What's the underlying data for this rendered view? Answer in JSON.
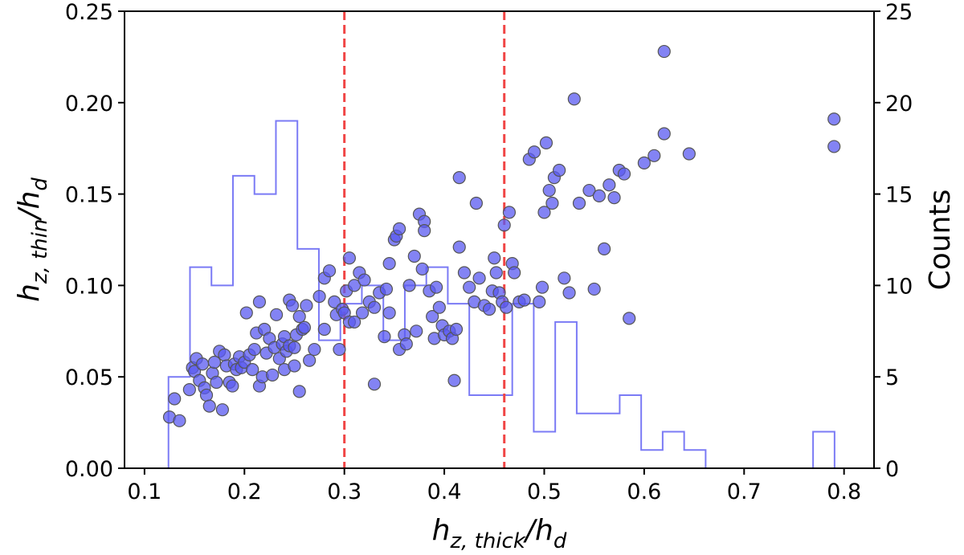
{
  "chart_data": {
    "type": "scatter",
    "title": "",
    "xlabel": {
      "base": "h",
      "sub": "z, thick",
      "suffix": "/h",
      "suffix_sub": "d"
    },
    "ylabel": {
      "base": "h",
      "sub": "z, thin",
      "suffix": "/h",
      "suffix_sub": "d"
    },
    "y2label": "Counts",
    "xlim": [
      0.08,
      0.83
    ],
    "ylim": [
      0,
      0.25
    ],
    "y2lim": [
      0,
      25
    ],
    "xticks": [
      "0.1",
      "0.2",
      "0.3",
      "0.4",
      "0.5",
      "0.6",
      "0.7",
      "0.8"
    ],
    "xtick_values": [
      0.1,
      0.2,
      0.3,
      0.4,
      0.5,
      0.6,
      0.7,
      0.8
    ],
    "yticks": [
      "0.00",
      "0.05",
      "0.10",
      "0.15",
      "0.20",
      "0.25"
    ],
    "ytick_values": [
      0,
      0.05,
      0.1,
      0.15,
      0.2,
      0.25
    ],
    "y2ticks": [
      "0",
      "5",
      "10",
      "15",
      "20",
      "25"
    ],
    "y2tick_values": [
      0,
      5,
      10,
      15,
      20,
      25
    ],
    "vlines": [
      0.3,
      0.46
    ],
    "colors": {
      "marker": "#5a5af0",
      "marker_edge": "#555555",
      "hist": "#7b7bf5",
      "vline": "#f04545"
    },
    "histogram": {
      "edges": [
        0.124,
        0.1455,
        0.167,
        0.1885,
        0.21,
        0.2315,
        0.253,
        0.2745,
        0.296,
        0.3175,
        0.339,
        0.3605,
        0.382,
        0.4035,
        0.425,
        0.4465,
        0.468,
        0.4895,
        0.511,
        0.5325,
        0.554,
        0.5755,
        0.597,
        0.6185,
        0.64,
        0.6615,
        0.683,
        0.7045,
        0.726,
        0.7475,
        0.769,
        0.7905
      ],
      "counts": [
        5,
        11,
        10,
        16,
        15,
        19,
        12,
        7,
        9,
        10,
        7,
        10,
        11,
        9,
        4,
        4,
        9,
        2,
        8,
        3,
        3,
        4,
        1,
        2,
        1,
        0,
        0,
        0,
        0,
        0,
        2
      ]
    },
    "points": [
      [
        0.125,
        0.028
      ],
      [
        0.13,
        0.038
      ],
      [
        0.135,
        0.026
      ],
      [
        0.145,
        0.043
      ],
      [
        0.148,
        0.055
      ],
      [
        0.15,
        0.053
      ],
      [
        0.152,
        0.06
      ],
      [
        0.155,
        0.048
      ],
      [
        0.158,
        0.057
      ],
      [
        0.16,
        0.044
      ],
      [
        0.162,
        0.04
      ],
      [
        0.165,
        0.034
      ],
      [
        0.168,
        0.052
      ],
      [
        0.17,
        0.058
      ],
      [
        0.172,
        0.047
      ],
      [
        0.175,
        0.064
      ],
      [
        0.178,
        0.032
      ],
      [
        0.18,
        0.062
      ],
      [
        0.182,
        0.056
      ],
      [
        0.185,
        0.047
      ],
      [
        0.188,
        0.045
      ],
      [
        0.19,
        0.057
      ],
      [
        0.192,
        0.054
      ],
      [
        0.195,
        0.061
      ],
      [
        0.197,
        0.055
      ],
      [
        0.2,
        0.058
      ],
      [
        0.202,
        0.085
      ],
      [
        0.205,
        0.062
      ],
      [
        0.208,
        0.054
      ],
      [
        0.21,
        0.065
      ],
      [
        0.212,
        0.074
      ],
      [
        0.215,
        0.091
      ],
      [
        0.215,
        0.045
      ],
      [
        0.218,
        0.05
      ],
      [
        0.22,
        0.076
      ],
      [
        0.222,
        0.063
      ],
      [
        0.225,
        0.071
      ],
      [
        0.228,
        0.051
      ],
      [
        0.23,
        0.066
      ],
      [
        0.232,
        0.084
      ],
      [
        0.235,
        0.06
      ],
      [
        0.238,
        0.068
      ],
      [
        0.24,
        0.072
      ],
      [
        0.24,
        0.054
      ],
      [
        0.242,
        0.064
      ],
      [
        0.245,
        0.067
      ],
      [
        0.245,
        0.092
      ],
      [
        0.248,
        0.089
      ],
      [
        0.25,
        0.066
      ],
      [
        0.25,
        0.056
      ],
      [
        0.252,
        0.073
      ],
      [
        0.255,
        0.083
      ],
      [
        0.255,
        0.042
      ],
      [
        0.258,
        0.076
      ],
      [
        0.26,
        0.077
      ],
      [
        0.262,
        0.089
      ],
      [
        0.265,
        0.059
      ],
      [
        0.27,
        0.065
      ],
      [
        0.275,
        0.094
      ],
      [
        0.28,
        0.076
      ],
      [
        0.28,
        0.104
      ],
      [
        0.285,
        0.108
      ],
      [
        0.29,
        0.091
      ],
      [
        0.292,
        0.084
      ],
      [
        0.295,
        0.065
      ],
      [
        0.298,
        0.087
      ],
      [
        0.3,
        0.085
      ],
      [
        0.302,
        0.097
      ],
      [
        0.305,
        0.115
      ],
      [
        0.305,
        0.08
      ],
      [
        0.31,
        0.08
      ],
      [
        0.31,
        0.1
      ],
      [
        0.315,
        0.107
      ],
      [
        0.318,
        0.085
      ],
      [
        0.32,
        0.103
      ],
      [
        0.325,
        0.091
      ],
      [
        0.33,
        0.088
      ],
      [
        0.33,
        0.046
      ],
      [
        0.335,
        0.096
      ],
      [
        0.34,
        0.072
      ],
      [
        0.342,
        0.098
      ],
      [
        0.345,
        0.085
      ],
      [
        0.345,
        0.112
      ],
      [
        0.35,
        0.125
      ],
      [
        0.352,
        0.127
      ],
      [
        0.355,
        0.131
      ],
      [
        0.355,
        0.065
      ],
      [
        0.36,
        0.073
      ],
      [
        0.362,
        0.068
      ],
      [
        0.365,
        0.1
      ],
      [
        0.37,
        0.116
      ],
      [
        0.372,
        0.075
      ],
      [
        0.375,
        0.139
      ],
      [
        0.378,
        0.109
      ],
      [
        0.38,
        0.135
      ],
      [
        0.38,
        0.13
      ],
      [
        0.385,
        0.097
      ],
      [
        0.388,
        0.083
      ],
      [
        0.39,
        0.071
      ],
      [
        0.392,
        0.099
      ],
      [
        0.395,
        0.088
      ],
      [
        0.398,
        0.078
      ],
      [
        0.4,
        0.073
      ],
      [
        0.405,
        0.075
      ],
      [
        0.408,
        0.071
      ],
      [
        0.41,
        0.048
      ],
      [
        0.412,
        0.076
      ],
      [
        0.415,
        0.121
      ],
      [
        0.415,
        0.159
      ],
      [
        0.42,
        0.107
      ],
      [
        0.425,
        0.099
      ],
      [
        0.43,
        0.091
      ],
      [
        0.432,
        0.145
      ],
      [
        0.435,
        0.104
      ],
      [
        0.44,
        0.089
      ],
      [
        0.445,
        0.087
      ],
      [
        0.448,
        0.097
      ],
      [
        0.45,
        0.115
      ],
      [
        0.452,
        0.107
      ],
      [
        0.455,
        0.096
      ],
      [
        0.458,
        0.091
      ],
      [
        0.46,
        0.133
      ],
      [
        0.462,
        0.088
      ],
      [
        0.465,
        0.14
      ],
      [
        0.468,
        0.112
      ],
      [
        0.47,
        0.107
      ],
      [
        0.475,
        0.091
      ],
      [
        0.48,
        0.092
      ],
      [
        0.485,
        0.169
      ],
      [
        0.49,
        0.173
      ],
      [
        0.495,
        0.091
      ],
      [
        0.498,
        0.099
      ],
      [
        0.5,
        0.14
      ],
      [
        0.502,
        0.178
      ],
      [
        0.505,
        0.152
      ],
      [
        0.508,
        0.145
      ],
      [
        0.51,
        0.159
      ],
      [
        0.515,
        0.163
      ],
      [
        0.52,
        0.104
      ],
      [
        0.525,
        0.096
      ],
      [
        0.53,
        0.202
      ],
      [
        0.535,
        0.145
      ],
      [
        0.545,
        0.152
      ],
      [
        0.55,
        0.098
      ],
      [
        0.555,
        0.149
      ],
      [
        0.56,
        0.12
      ],
      [
        0.565,
        0.155
      ],
      [
        0.57,
        0.148
      ],
      [
        0.575,
        0.163
      ],
      [
        0.58,
        0.161
      ],
      [
        0.585,
        0.082
      ],
      [
        0.6,
        0.167
      ],
      [
        0.61,
        0.171
      ],
      [
        0.62,
        0.228
      ],
      [
        0.62,
        0.183
      ],
      [
        0.645,
        0.172
      ],
      [
        0.79,
        0.191
      ],
      [
        0.79,
        0.176
      ]
    ]
  }
}
